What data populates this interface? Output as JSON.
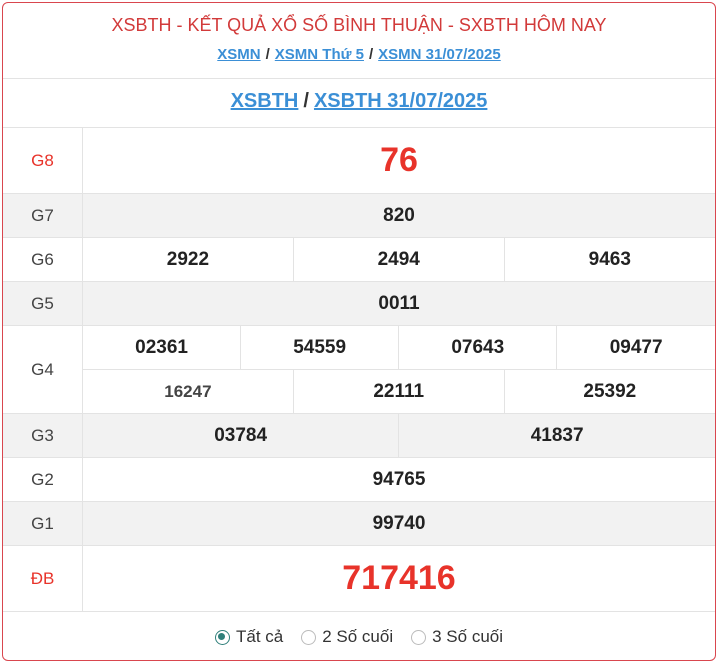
{
  "header": {
    "title": "XSBTH - KẾT QUẢ XỔ SỐ BÌNH THUẬN - SXBTH HÔM NAY",
    "breadcrumbs": [
      "XSMN",
      "XSMN Thứ 5",
      "XSMN 31/07/2025"
    ],
    "separator": "/"
  },
  "subheader": {
    "links": [
      "XSBTH",
      "XSBTH 31/07/2025"
    ]
  },
  "prizes": {
    "g8": {
      "label": "G8",
      "numbers": [
        "76"
      ]
    },
    "g7": {
      "label": "G7",
      "numbers": [
        "820"
      ]
    },
    "g6": {
      "label": "G6",
      "numbers": [
        "2922",
        "2494",
        "9463"
      ]
    },
    "g5": {
      "label": "G5",
      "numbers": [
        "0011"
      ]
    },
    "g4": {
      "label": "G4",
      "numbers": [
        "02361",
        "54559",
        "07643",
        "09477",
        "16247",
        "22111",
        "25392"
      ]
    },
    "g3": {
      "label": "G3",
      "numbers": [
        "03784",
        "41837"
      ]
    },
    "g2": {
      "label": "G2",
      "numbers": [
        "94765"
      ]
    },
    "g1": {
      "label": "G1",
      "numbers": [
        "99740"
      ]
    },
    "db": {
      "label": "ĐB",
      "numbers": [
        "717416"
      ]
    }
  },
  "filter": {
    "options": [
      "Tất cả",
      "2 Số cuối",
      "3 Số cuối"
    ],
    "selected": "Tất cả"
  },
  "colors": {
    "accent_red": "#e8332a",
    "link": "#3b8fd6",
    "radio": "#2f7f7a",
    "border": "#d9464e"
  }
}
